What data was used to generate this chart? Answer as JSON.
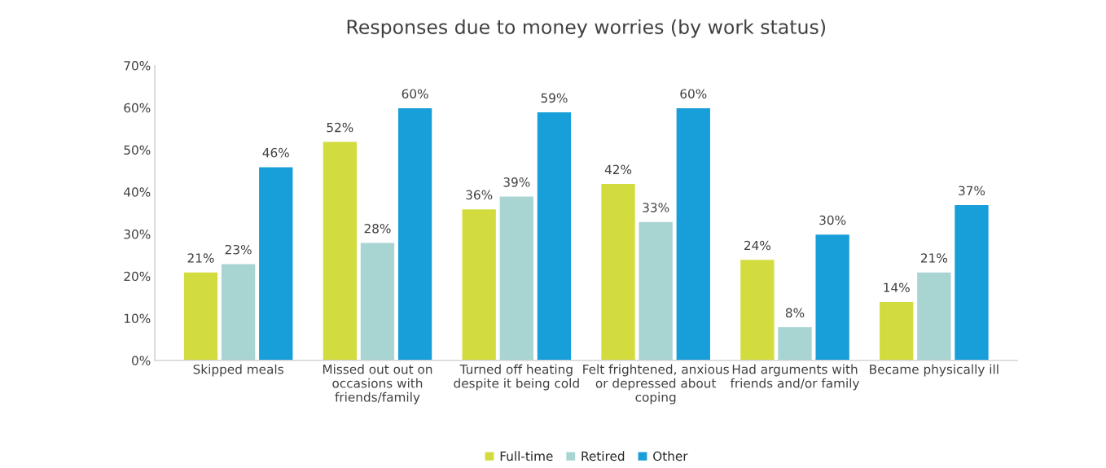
{
  "chart_data": {
    "type": "bar",
    "title": "Responses due to money worries (by work status)",
    "categories": [
      "Skipped meals",
      "Missed out out on\noccasions with\nfriends/family",
      "Turned off heating\ndespite it being cold",
      "Felt frightened, anxious\nor depressed about\ncoping",
      "Had arguments with\nfriends and/or family",
      "Became physically ill"
    ],
    "series": [
      {
        "name": "Full-time",
        "color": "#d3dc3f",
        "values": [
          21,
          52,
          36,
          42,
          24,
          14
        ],
        "value_labels": [
          "21%",
          "52%",
          "36%",
          "42%",
          "24%",
          "14%"
        ]
      },
      {
        "name": "Retired",
        "color": "#a8d4d2",
        "values": [
          23,
          28,
          39,
          33,
          8,
          21
        ],
        "value_labels": [
          "23%",
          "28%",
          "39%",
          "33%",
          "8%",
          "21%"
        ]
      },
      {
        "name": "Other",
        "color": "#189ed8",
        "values": [
          46,
          60,
          59,
          60,
          30,
          37
        ],
        "value_labels": [
          "46%",
          "60%",
          "59%",
          "60%",
          "30%",
          "37%"
        ]
      }
    ],
    "ylim": [
      0,
      70
    ],
    "yticks": [
      {
        "value": 0,
        "label": "0%"
      },
      {
        "value": 10,
        "label": "10%"
      },
      {
        "value": 20,
        "label": "20%"
      },
      {
        "value": 30,
        "label": "30%"
      },
      {
        "value": 40,
        "label": "40%"
      },
      {
        "value": 50,
        "label": "50%"
      },
      {
        "value": 60,
        "label": "60%"
      },
      {
        "value": 70,
        "label": "70%"
      }
    ],
    "grid": false,
    "legend": "bottom"
  }
}
